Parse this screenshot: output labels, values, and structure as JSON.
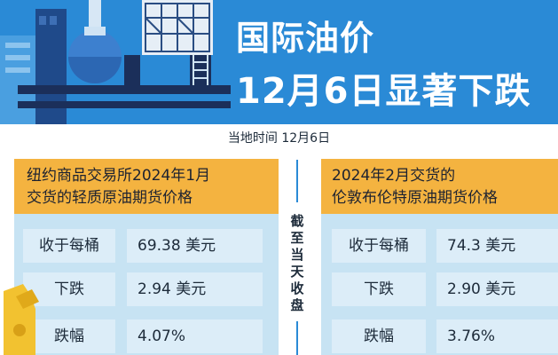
{
  "header": {
    "title_line1": "国际油价",
    "title_line2": "12月6日显著下跌"
  },
  "date_line": "当地时间 12月6日",
  "middle_label": "截至当天收盘",
  "colors": {
    "header_bg": "#2a8ad6",
    "panel_head_bg": "#f4b340",
    "panel_body_bg": "#c7e3f3",
    "row_bg": "#dcedf8",
    "text_dark": "#1d2b3a"
  },
  "panels": [
    {
      "heading_line1": "纽约商品交易所2024年1月",
      "heading_line2": "交货的轻质原油期货价格",
      "rows": [
        {
          "label": "收于每桶",
          "value": "69.38 美元"
        },
        {
          "label": "下跌",
          "value": "2.94 美元"
        },
        {
          "label": "跌幅",
          "value": "4.07%"
        }
      ]
    },
    {
      "heading_line1": "2024年2月交货的",
      "heading_line2": "伦敦布伦特原油期货价格",
      "rows": [
        {
          "label": "收于每桶",
          "value": "74.3 美元"
        },
        {
          "label": "下跌",
          "value": "2.90 美元"
        },
        {
          "label": "跌幅",
          "value": "3.76%"
        }
      ]
    }
  ]
}
